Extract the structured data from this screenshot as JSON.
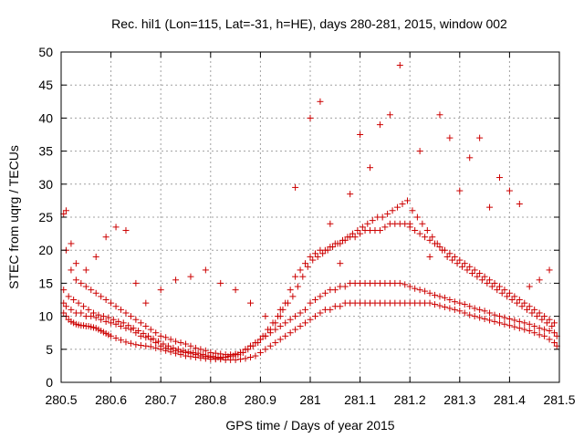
{
  "chart_data": {
    "type": "scatter",
    "title": "Rec. hil1 (Lon=115, Lat=-31, h=HE), days 280-281, 2015, window 002",
    "xlabel": "GPS time / Days of year 2015",
    "ylabel": "STEC from uqrg / TECUs",
    "xlim": [
      280.5,
      281.5
    ],
    "ylim": [
      0,
      50
    ],
    "xticks": [
      280.5,
      280.6,
      280.7,
      280.8,
      280.9,
      281.0,
      281.1,
      281.2,
      281.3,
      281.4,
      281.5
    ],
    "xtick_labels": [
      "280.5",
      "280.6",
      "280.7",
      "280.8",
      "280.9",
      "281",
      "281.1",
      "281.2",
      "281.3",
      "281.4",
      "281.5"
    ],
    "yticks": [
      0,
      5,
      10,
      15,
      20,
      25,
      30,
      35,
      40,
      45,
      50
    ],
    "ytick_labels": [
      "0",
      "5",
      "10",
      "15",
      "20",
      "25",
      "30",
      "35",
      "40",
      "45",
      "50"
    ],
    "grid": true,
    "marker": "+",
    "color": "#cc0000",
    "series": [
      {
        "x": [
          280.505,
          280.51,
          280.515,
          280.52,
          280.525,
          280.53,
          280.535,
          280.54,
          280.545,
          280.55,
          280.555,
          280.56,
          280.565,
          280.57,
          280.575,
          280.58,
          280.585,
          280.59,
          280.595,
          280.6,
          280.61,
          280.62,
          280.63,
          280.64,
          280.65,
          280.66,
          280.67,
          280.68,
          280.69,
          280.7,
          280.71,
          280.72,
          280.73,
          280.74,
          280.75,
          280.76,
          280.77,
          280.78,
          280.79,
          280.8,
          280.81,
          280.82,
          280.83,
          280.84,
          280.85,
          280.86,
          280.87,
          280.88,
          280.89,
          280.9,
          280.91,
          280.92,
          280.93,
          280.94,
          280.95,
          280.96,
          280.97,
          280.98,
          280.99,
          281.0,
          281.01,
          281.02,
          281.03,
          281.04,
          281.05,
          281.06,
          281.07,
          281.08,
          281.09,
          281.1,
          281.11,
          281.12,
          281.13,
          281.14,
          281.15,
          281.16,
          281.17,
          281.18,
          281.19,
          281.2,
          281.21,
          281.22,
          281.23,
          281.24,
          281.25,
          281.26,
          281.27,
          281.28,
          281.29,
          281.3,
          281.31,
          281.32,
          281.33,
          281.34,
          281.35,
          281.36,
          281.37,
          281.38,
          281.39,
          281.4,
          281.41,
          281.42,
          281.43,
          281.44,
          281.45,
          281.46,
          281.47,
          281.48,
          281.49,
          281.495
        ],
        "y": [
          10.5,
          10,
          9.5,
          9.2,
          9,
          8.8,
          8.7,
          8.6,
          8.6,
          8.5,
          8.5,
          8.4,
          8.3,
          8.2,
          8,
          7.8,
          7.6,
          7.4,
          7.2,
          7,
          6.7,
          6.4,
          6.1,
          5.9,
          5.7,
          5.6,
          5.5,
          5.4,
          5.2,
          5,
          4.8,
          4.6,
          4.4,
          4.2,
          4,
          3.9,
          3.8,
          3.7,
          3.6,
          3.5,
          3.5,
          3.5,
          3.4,
          3.4,
          3.4,
          3.5,
          3.6,
          3.8,
          4,
          4.5,
          5,
          5.5,
          6,
          6.5,
          7,
          7.5,
          8,
          8.5,
          9,
          9.5,
          10,
          10.5,
          11,
          11,
          11.5,
          11.5,
          12,
          12,
          12,
          12,
          12,
          12,
          12,
          12,
          12,
          12,
          12,
          12,
          12,
          12,
          12,
          12,
          12,
          12,
          11.8,
          11.6,
          11.4,
          11.2,
          11,
          10.8,
          10.5,
          10.2,
          10,
          9.8,
          9.6,
          9.4,
          9.2,
          9,
          8.8,
          8.6,
          8.4,
          8.2,
          8,
          7.8,
          7.5,
          7.2,
          7,
          6.5,
          6,
          5.5
        ]
      },
      {
        "x": [
          280.505,
          280.51,
          280.52,
          280.53,
          280.54,
          280.55,
          280.56,
          280.57,
          280.58,
          280.59,
          280.6,
          280.61,
          280.62,
          280.63,
          280.64,
          280.65,
          280.66,
          280.67,
          280.68,
          280.69,
          280.7,
          280.71,
          280.72,
          280.73,
          280.74,
          280.75,
          280.76,
          280.77,
          280.78,
          280.79,
          280.8,
          280.81,
          280.82,
          280.83,
          280.84,
          280.85,
          280.86,
          280.87,
          280.88,
          280.89,
          280.9,
          280.91,
          280.92,
          280.93,
          280.94,
          280.95,
          280.96,
          280.97,
          280.98,
          280.99,
          281.0,
          281.01,
          281.02,
          281.03,
          281.04,
          281.05,
          281.06,
          281.07,
          281.08,
          281.09,
          281.1,
          281.11,
          281.12,
          281.13,
          281.14,
          281.15,
          281.16,
          281.17,
          281.18,
          281.19,
          281.2,
          281.21,
          281.22,
          281.23,
          281.24,
          281.25,
          281.26,
          281.27,
          281.28,
          281.29,
          281.3,
          281.31,
          281.32,
          281.33,
          281.34,
          281.35,
          281.36,
          281.37,
          281.38,
          281.39,
          281.4,
          281.41,
          281.42,
          281.43,
          281.44,
          281.45,
          281.46,
          281.47,
          281.48,
          281.49
        ],
        "y": [
          12,
          11.5,
          11,
          10.5,
          10.5,
          10,
          10,
          9.8,
          9.5,
          9.2,
          9,
          8.8,
          8.5,
          8.2,
          8,
          7.5,
          7,
          6.8,
          6.5,
          6,
          5.5,
          5.2,
          5,
          4.8,
          4.6,
          4.5,
          4.4,
          4.2,
          4,
          3.9,
          3.8,
          3.7,
          3.7,
          3.8,
          4,
          4.2,
          4.5,
          5,
          5.5,
          6,
          6.5,
          7,
          7.5,
          8,
          8.5,
          9,
          9.5,
          10,
          10.5,
          11,
          12,
          12.5,
          13,
          13.5,
          14,
          14,
          14.5,
          14.5,
          15,
          15,
          15,
          15,
          15,
          15,
          15,
          15,
          15,
          15,
          15,
          14.8,
          14.5,
          14.2,
          14,
          13.8,
          13.5,
          13.2,
          13,
          12.8,
          12.5,
          12.2,
          12,
          11.8,
          11.5,
          11.2,
          11,
          10.8,
          10.5,
          10.2,
          10,
          9.8,
          9.6,
          9.4,
          9.2,
          9,
          8.8,
          8.5,
          8.2,
          8,
          7.8,
          7.5
        ]
      },
      {
        "x": [
          280.505,
          280.51,
          280.52,
          280.53,
          280.54,
          280.55,
          280.56,
          280.57,
          280.58,
          280.59,
          280.6,
          280.61,
          280.62,
          280.63,
          280.64,
          280.65,
          280.66,
          280.67,
          280.68,
          280.69,
          280.7,
          280.71,
          280.72,
          280.73,
          280.74,
          280.75,
          280.76,
          280.77,
          280.78,
          280.79,
          280.8,
          280.81,
          280.82,
          280.83,
          280.84,
          280.85,
          280.86,
          280.87,
          280.88,
          280.89,
          280.9,
          280.91,
          280.92,
          280.93,
          280.94,
          280.95,
          280.96,
          280.97,
          280.98,
          280.99,
          281.0,
          281.01,
          281.02,
          281.03,
          281.04,
          281.05,
          281.06,
          281.07,
          281.08,
          281.09,
          281.1,
          281.11,
          281.12,
          281.13,
          281.14,
          281.15,
          281.16,
          281.17,
          281.18,
          281.19,
          281.2,
          281.21,
          281.22,
          281.23,
          281.24,
          281.25,
          281.26,
          281.27,
          281.28,
          281.29,
          281.3,
          281.31,
          281.32,
          281.33,
          281.34,
          281.35,
          281.36,
          281.37,
          281.38,
          281.39,
          281.4,
          281.41,
          281.42,
          281.43,
          281.44,
          281.45,
          281.46,
          281.47,
          281.48,
          281.49
        ],
        "y": [
          25.5,
          20,
          17,
          15.5,
          15,
          14.5,
          14,
          13.5,
          13,
          12.5,
          12,
          11.5,
          11,
          10.5,
          10,
          9.5,
          9,
          8.5,
          8,
          7.5,
          7,
          6.8,
          6.5,
          6.2,
          6,
          5.8,
          5.5,
          5.2,
          5,
          4.8,
          4.5,
          4.4,
          4.3,
          4.2,
          4.2,
          4.3,
          4.5,
          5,
          5.5,
          6,
          6.5,
          7,
          8,
          9,
          10,
          12,
          14,
          16,
          17,
          18,
          19,
          19.5,
          20,
          20,
          20.5,
          21,
          21,
          21.5,
          22,
          22,
          22.5,
          23,
          23,
          23,
          23,
          23.5,
          24,
          24,
          24,
          24,
          23.5,
          23,
          22.5,
          22,
          21.5,
          21,
          20.5,
          20,
          19.5,
          19,
          18.5,
          18,
          17.5,
          17,
          16.5,
          16,
          15.5,
          15,
          14.5,
          14,
          13.5,
          13,
          12.5,
          12,
          11.5,
          11,
          10.5,
          10,
          9.5,
          9
        ]
      },
      {
        "x": [
          280.51,
          280.52,
          280.53,
          280.55,
          280.57,
          280.59,
          280.61,
          280.63,
          280.65,
          280.67,
          280.7,
          280.73,
          280.76,
          280.79,
          280.82,
          280.85,
          280.88,
          280.91,
          280.94,
          280.97,
          281.0,
          281.02,
          281.04,
          281.06,
          281.08,
          281.1,
          281.12,
          281.14,
          281.16,
          281.18,
          281.2,
          281.22,
          281.24,
          281.26,
          281.28,
          281.3,
          281.32,
          281.34,
          281.36,
          281.38,
          281.4,
          281.42,
          281.44,
          281.46,
          281.48
        ],
        "y": [
          26,
          21,
          18,
          17,
          19,
          22,
          23.5,
          23,
          15,
          12,
          14,
          15.5,
          16,
          17,
          15,
          14,
          12,
          10,
          11,
          29.5,
          40,
          42.5,
          24,
          18,
          28.5,
          37.5,
          32.5,
          39,
          40.5,
          48,
          24,
          35,
          19,
          40.5,
          37,
          29,
          34,
          37,
          26.5,
          31,
          29,
          27,
          14.5,
          15.5,
          17
        ]
      },
      {
        "x": [
          280.505,
          280.515,
          280.525,
          280.535,
          280.545,
          280.555,
          280.565,
          280.575,
          280.585,
          280.595,
          280.605,
          280.615,
          280.625,
          280.635,
          280.645,
          280.655,
          280.665,
          280.675,
          280.685,
          280.695,
          280.705,
          280.715,
          280.725,
          280.735,
          280.745,
          280.755,
          280.765,
          280.775,
          280.785,
          280.795,
          280.805,
          280.815,
          280.825,
          280.835,
          280.845,
          280.855,
          280.865,
          280.875,
          280.885,
          280.895,
          280.905,
          280.915,
          280.925,
          280.935,
          280.945,
          280.955,
          280.965,
          280.975,
          280.985,
          280.995,
          281.005,
          281.015,
          281.025,
          281.035,
          281.045,
          281.055,
          281.065,
          281.075,
          281.085,
          281.095,
          281.105,
          281.115,
          281.125,
          281.135,
          281.145,
          281.155,
          281.165,
          281.175,
          281.185,
          281.195,
          281.205,
          281.215,
          281.225,
          281.235,
          281.245,
          281.255,
          281.265,
          281.275,
          281.285,
          281.295,
          281.305,
          281.315,
          281.325,
          281.335,
          281.345,
          281.355,
          281.365,
          281.375,
          281.385,
          281.395,
          281.405,
          281.415,
          281.425,
          281.435,
          281.445,
          281.455,
          281.465,
          281.475,
          281.485,
          281.495
        ],
        "y": [
          14,
          13,
          12.5,
          12,
          11.5,
          11,
          10.5,
          10.2,
          10,
          9.8,
          9.5,
          9.2,
          9,
          8.6,
          8.2,
          7.8,
          7.4,
          7,
          6.6,
          6.2,
          5.8,
          5.5,
          5.2,
          5,
          4.8,
          4.6,
          4.5,
          4.4,
          4.2,
          4,
          3.9,
          3.8,
          3.8,
          3.9,
          4,
          4.2,
          4.5,
          5,
          5.5,
          6,
          7,
          8,
          9,
          10,
          11,
          12,
          13,
          14.5,
          16,
          17.5,
          18.5,
          19,
          19.5,
          20,
          20.5,
          21,
          21.5,
          22,
          22.5,
          23,
          23.5,
          24,
          24.5,
          25,
          25,
          25.5,
          26,
          26.5,
          27,
          27.5,
          26,
          25,
          24,
          23,
          22,
          21,
          20,
          19,
          18.5,
          18,
          17.5,
          17,
          16.5,
          16,
          15.5,
          15,
          14.5,
          14,
          13.5,
          13,
          12.5,
          12,
          11.5,
          11,
          10.5,
          10,
          9.5,
          9,
          8.5,
          7
        ]
      }
    ]
  }
}
